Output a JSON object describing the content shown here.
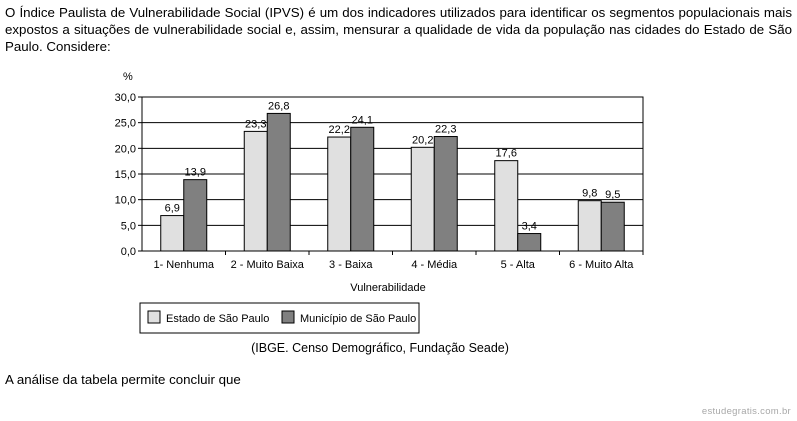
{
  "intro": "O Índice Paulista de Vulnerabilidade Social (IPVS) é um dos indicadores utilizados para identificar os segmentos populacionais mais expostos a situações de vulnerabilidade social e, assim, mensurar a qualidade de vida da população nas cidades do Estado de São Paulo. Considere:",
  "source": "(IBGE. Censo Demográfico, Fundação Seade)",
  "question": "A análise da tabela permite concluir que",
  "watermark": "estudegratis.com.br",
  "colors": {
    "estado": "#e0e0e0",
    "municipio": "#808080"
  },
  "chart_data": {
    "type": "bar",
    "categories": [
      "1- Nenhuma",
      "2 - Muito Baixa",
      "3 - Baixa",
      "4 - Média",
      "5 - Alta",
      "6 - Muito Alta"
    ],
    "series": [
      {
        "name": "Estado de São Paulo",
        "values": [
          6.9,
          23.3,
          22.2,
          20.2,
          17.6,
          9.8
        ],
        "labels": [
          "6,9",
          "23,3",
          "22,2",
          "20,2",
          "17,6",
          "9,8"
        ]
      },
      {
        "name": "Município de São Paulo",
        "values": [
          13.9,
          26.8,
          24.1,
          22.3,
          3.4,
          9.5
        ],
        "labels": [
          "13,9",
          "26,8",
          "24,1",
          "22,3",
          "3,4",
          "9,5"
        ]
      }
    ],
    "ylabel": "%",
    "xlabel": "Vulnerabilidade",
    "ylim": [
      0,
      30
    ],
    "yticks": [
      0,
      5,
      10,
      15,
      20,
      25,
      30
    ],
    "ytick_labels": [
      "0,0",
      "5,0",
      "10,0",
      "15,0",
      "20,0",
      "25,0",
      "30,0"
    ],
    "grid": true,
    "legend": "bottom-left"
  }
}
